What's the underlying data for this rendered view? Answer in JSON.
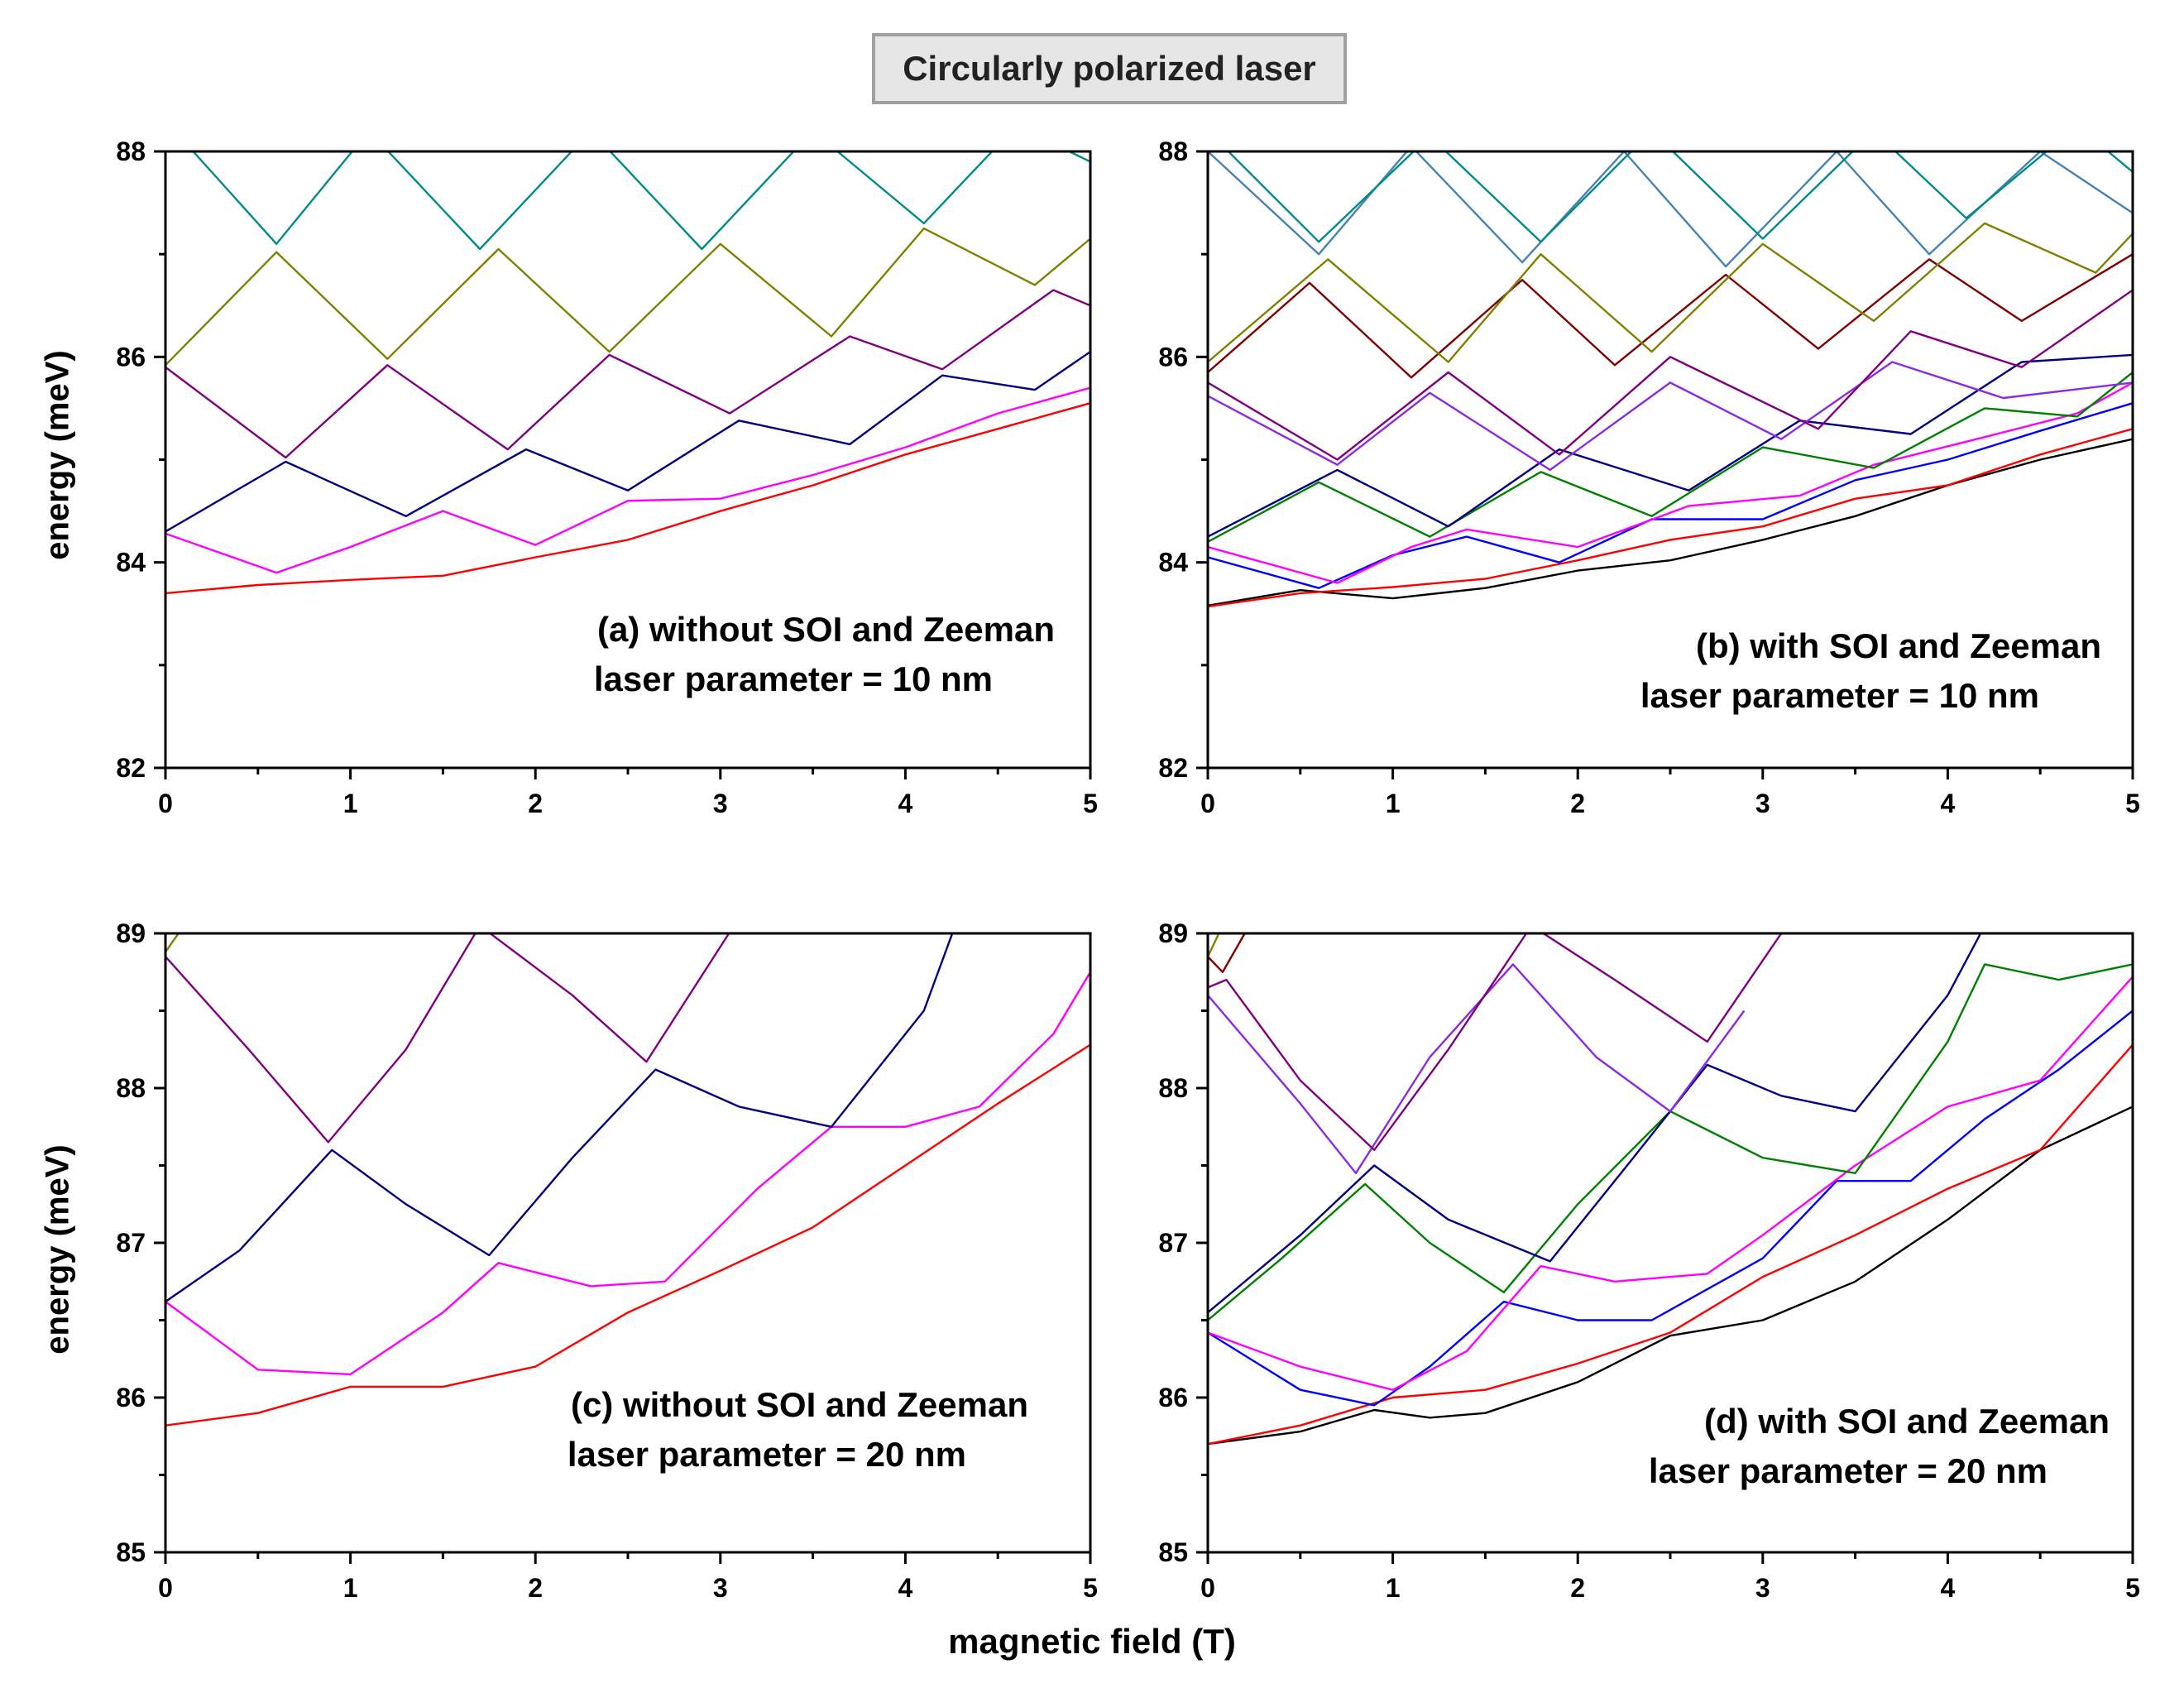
{
  "figure": {
    "title": "Circularly polarized laser",
    "xlabel": "magnetic field (T)",
    "ylabel": "energy (meV)"
  },
  "chart_data": [
    {
      "type": "line",
      "panel": "a",
      "annotation": [
        "(a) without SOI and Zeeman",
        "laser parameter = 10 nm"
      ],
      "xlim": [
        0,
        5
      ],
      "ylim": [
        82,
        88
      ],
      "xticks": [
        0,
        1,
        2,
        3,
        4,
        5
      ],
      "yticks": [
        82,
        84,
        86,
        88
      ],
      "series": [
        {
          "color": "#ff0000",
          "x": [
            0,
            0.5,
            1,
            1.5,
            2,
            2.5,
            3,
            3.5,
            4,
            4.5,
            5
          ],
          "y": [
            83.7,
            83.78,
            83.83,
            83.87,
            84.05,
            84.22,
            84.5,
            84.75,
            85.05,
            85.3,
            85.55
          ]
        },
        {
          "color": "#ff00ff",
          "x": [
            0,
            0.6,
            1,
            1.5,
            2,
            2.5,
            3,
            3.5,
            4,
            4.5,
            5
          ],
          "y": [
            84.28,
            83.9,
            84.15,
            84.5,
            84.17,
            84.6,
            84.62,
            84.85,
            85.12,
            85.45,
            85.7
          ]
        },
        {
          "color": "#000080",
          "x": [
            0,
            0.65,
            1.3,
            1.95,
            2.5,
            3.1,
            3.7,
            4.2,
            4.7,
            5
          ],
          "y": [
            84.3,
            84.98,
            84.45,
            85.1,
            84.7,
            85.38,
            85.15,
            85.82,
            85.68,
            86.05
          ]
        },
        {
          "color": "#800080",
          "x": [
            0,
            0.65,
            1.2,
            1.85,
            2.4,
            3.05,
            3.7,
            4.2,
            4.8,
            5
          ],
          "y": [
            85.9,
            85.02,
            85.92,
            85.1,
            86.02,
            85.45,
            86.2,
            85.88,
            86.65,
            86.5
          ]
        },
        {
          "color": "#808000",
          "x": [
            0,
            0.6,
            1.2,
            1.8,
            2.4,
            3,
            3.6,
            4.1,
            4.7,
            5
          ],
          "y": [
            85.92,
            87.02,
            85.98,
            87.05,
            86.05,
            87.1,
            86.2,
            87.25,
            86.7,
            87.15
          ]
        },
        {
          "color": "#008b8b",
          "x": [
            0,
            0.6,
            1.1,
            1.7,
            2.3,
            2.9,
            3.5,
            4.1,
            4.6,
            5
          ],
          "y": [
            88.3,
            87.1,
            88.2,
            87.05,
            88.2,
            87.05,
            88.2,
            87.3,
            88.25,
            87.9
          ]
        }
      ]
    },
    {
      "type": "line",
      "panel": "b",
      "annotation": [
        "(b) with SOI and Zeeman",
        "laser parameter = 10 nm"
      ],
      "xlim": [
        0,
        5
      ],
      "ylim": [
        82,
        88
      ],
      "xticks": [
        0,
        1,
        2,
        3,
        4,
        5
      ],
      "yticks": [
        82,
        84,
        86,
        88
      ],
      "series": [
        {
          "color": "#000000",
          "x": [
            0,
            0.5,
            1,
            1.5,
            2,
            2.5,
            3,
            3.5,
            4,
            4.5,
            5
          ],
          "y": [
            83.58,
            83.73,
            83.65,
            83.75,
            83.92,
            84.02,
            84.22,
            84.45,
            84.75,
            85,
            85.2
          ]
        },
        {
          "color": "#ff0000",
          "x": [
            0,
            0.5,
            1,
            1.5,
            2,
            2.5,
            3,
            3.5,
            4,
            4.5,
            5
          ],
          "y": [
            83.57,
            83.7,
            83.76,
            83.84,
            84.02,
            84.22,
            84.35,
            84.62,
            84.75,
            85.05,
            85.3
          ]
        },
        {
          "color": "#0000ff",
          "x": [
            0,
            0.6,
            1,
            1.4,
            1.9,
            2.4,
            3,
            3.5,
            4,
            4.5,
            5
          ],
          "y": [
            84.05,
            83.75,
            84.07,
            84.25,
            84.0,
            84.42,
            84.42,
            84.8,
            85.0,
            85.28,
            85.55
          ]
        },
        {
          "color": "#ff00ff",
          "x": [
            0,
            0.7,
            1.1,
            1.4,
            2,
            2.6,
            3.2,
            3.6,
            4.2,
            4.7,
            5
          ],
          "y": [
            84.15,
            83.8,
            84.15,
            84.32,
            84.15,
            84.55,
            84.65,
            84.95,
            85.22,
            85.45,
            85.75
          ]
        },
        {
          "color": "#008000",
          "x": [
            0,
            0.6,
            1.2,
            1.8,
            2.4,
            3,
            3.6,
            4.2,
            4.7,
            5
          ],
          "y": [
            84.2,
            84.78,
            84.25,
            84.88,
            84.45,
            85.12,
            84.92,
            85.5,
            85.42,
            85.85
          ]
        },
        {
          "color": "#000080",
          "x": [
            0,
            0.7,
            1.3,
            1.9,
            2.6,
            3.2,
            3.8,
            4.4,
            5
          ],
          "y": [
            84.25,
            84.9,
            84.35,
            85.1,
            84.7,
            85.38,
            85.25,
            85.95,
            86.02
          ]
        },
        {
          "color": "#8a2be2",
          "x": [
            0,
            0.7,
            1.2,
            1.85,
            2.5,
            3.1,
            3.7,
            4.3,
            5
          ],
          "y": [
            85.62,
            84.95,
            85.65,
            84.9,
            85.75,
            85.2,
            85.95,
            85.6,
            85.75
          ]
        },
        {
          "color": "#800080",
          "x": [
            0,
            0.7,
            1.3,
            1.9,
            2.5,
            3.3,
            3.8,
            4.4,
            5
          ],
          "y": [
            85.75,
            85.0,
            85.85,
            85.05,
            86.0,
            85.3,
            86.25,
            85.9,
            86.65
          ]
        },
        {
          "color": "#800000",
          "x": [
            0,
            0.55,
            1.1,
            1.7,
            2.2,
            2.8,
            3.3,
            3.9,
            4.4,
            5
          ],
          "y": [
            85.85,
            86.72,
            85.8,
            86.75,
            85.92,
            86.8,
            86.08,
            86.95,
            86.35,
            87.0
          ]
        },
        {
          "color": "#808000",
          "x": [
            0,
            0.65,
            1.3,
            1.8,
            2.4,
            3,
            3.6,
            4.2,
            4.8,
            5
          ],
          "y": [
            85.95,
            86.95,
            85.95,
            87.0,
            86.05,
            87.1,
            86.35,
            87.3,
            86.82,
            87.2
          ]
        },
        {
          "color": "#4682b4",
          "x": [
            0,
            0.6,
            1.1,
            1.7,
            2.25,
            2.8,
            3.4,
            3.9,
            4.5,
            5
          ],
          "y": [
            88.0,
            87.0,
            88.05,
            86.92,
            88.0,
            86.88,
            88.0,
            87.0,
            88.0,
            87.4
          ]
        },
        {
          "color": "#008b8b",
          "x": [
            0,
            0.6,
            1.2,
            1.8,
            2.4,
            3,
            3.6,
            4.1,
            4.7,
            5
          ],
          "y": [
            88.2,
            87.12,
            88.15,
            87.12,
            88.2,
            87.15,
            88.2,
            87.35,
            88.25,
            87.8
          ]
        }
      ]
    },
    {
      "type": "line",
      "panel": "c",
      "annotation": [
        "(c) without SOI and Zeeman",
        "laser parameter = 20 nm"
      ],
      "xlim": [
        0,
        5
      ],
      "ylim": [
        85,
        89
      ],
      "xticks": [
        0,
        1,
        2,
        3,
        4,
        5
      ],
      "yticks": [
        85,
        86,
        87,
        88,
        89
      ],
      "series": [
        {
          "color": "#ff0000",
          "x": [
            0,
            0.5,
            1,
            1.5,
            2,
            2.5,
            3,
            3.5,
            4,
            4.5,
            5
          ],
          "y": [
            85.82,
            85.9,
            86.07,
            86.07,
            86.2,
            86.55,
            86.82,
            87.1,
            87.5,
            87.9,
            88.28
          ]
        },
        {
          "color": "#ff00ff",
          "x": [
            0,
            0.5,
            1,
            1.5,
            1.8,
            2.3,
            2.7,
            3.2,
            3.6,
            4,
            4.4,
            4.8,
            5
          ],
          "y": [
            86.62,
            86.18,
            86.15,
            86.55,
            86.87,
            86.72,
            86.75,
            87.35,
            87.75,
            87.75,
            87.88,
            88.35,
            88.75
          ]
        },
        {
          "color": "#000080",
          "x": [
            0,
            0.4,
            0.9,
            1.3,
            1.75,
            2.2,
            2.65,
            3.1,
            3.6,
            4.1,
            4.3
          ],
          "y": [
            86.62,
            86.95,
            87.6,
            87.25,
            86.92,
            87.55,
            88.12,
            87.88,
            87.75,
            88.5,
            89.15
          ]
        },
        {
          "color": "#800080",
          "x": [
            0,
            0.45,
            0.88,
            1.3,
            1.7,
            2.2,
            2.6,
            3.1
          ],
          "y": [
            88.85,
            88.25,
            87.65,
            88.25,
            89.05,
            88.6,
            88.17,
            89.1
          ]
        },
        {
          "color": "#808000",
          "x": [
            0,
            0.1
          ],
          "y": [
            88.88,
            89.05
          ]
        }
      ]
    },
    {
      "type": "line",
      "panel": "d",
      "annotation": [
        "(d) with SOI and Zeeman",
        "laser parameter = 20 nm"
      ],
      "xlim": [
        0,
        5
      ],
      "ylim": [
        85,
        89
      ],
      "xticks": [
        0,
        1,
        2,
        3,
        4,
        5
      ],
      "yticks": [
        85,
        86,
        87,
        88,
        89
      ],
      "series": [
        {
          "color": "#000000",
          "x": [
            0,
            0.5,
            0.9,
            1.2,
            1.5,
            2,
            2.5,
            3,
            3.5,
            4,
            4.5,
            5
          ],
          "y": [
            85.7,
            85.78,
            85.92,
            85.87,
            85.9,
            86.1,
            86.4,
            86.5,
            86.75,
            87.15,
            87.6,
            87.88
          ]
        },
        {
          "color": "#ff0000",
          "x": [
            0,
            0.5,
            1,
            1.5,
            2,
            2.5,
            3,
            3.5,
            4,
            4.5,
            5
          ],
          "y": [
            85.7,
            85.82,
            86.0,
            86.05,
            86.22,
            86.42,
            86.78,
            87.05,
            87.35,
            87.6,
            88.28
          ]
        },
        {
          "color": "#0000ff",
          "x": [
            0,
            0.5,
            0.9,
            1.2,
            1.6,
            2,
            2.4,
            3,
            3.4,
            3.8,
            4.2,
            4.6,
            5
          ],
          "y": [
            86.42,
            86.05,
            85.95,
            86.2,
            86.62,
            86.5,
            86.5,
            86.9,
            87.4,
            87.4,
            87.8,
            88.12,
            88.5
          ]
        },
        {
          "color": "#ff00ff",
          "x": [
            0,
            0.5,
            1,
            1.4,
            1.8,
            2.2,
            2.7,
            3,
            3.5,
            4,
            4.5,
            5
          ],
          "y": [
            86.42,
            86.2,
            86.05,
            86.3,
            86.85,
            86.75,
            86.8,
            87.05,
            87.5,
            87.88,
            88.05,
            88.72
          ]
        },
        {
          "color": "#008000",
          "x": [
            0,
            0.4,
            0.85,
            1.2,
            1.6,
            2,
            2.5,
            3,
            3.5,
            4,
            4.2,
            4.6,
            5
          ],
          "y": [
            86.5,
            86.9,
            87.38,
            87.0,
            86.68,
            87.25,
            87.85,
            87.55,
            87.45,
            88.3,
            88.8,
            88.7,
            88.8
          ]
        },
        {
          "color": "#000080",
          "x": [
            0,
            0.5,
            0.9,
            1.3,
            1.85,
            2.3,
            2.7,
            3.1,
            3.5,
            4,
            4.2
          ],
          "y": [
            86.55,
            87.05,
            87.5,
            87.15,
            86.88,
            87.55,
            88.15,
            87.95,
            87.85,
            88.6,
            89.05
          ]
        },
        {
          "color": "#8a2be2",
          "x": [
            0,
            0.5,
            0.8,
            1.2,
            1.65,
            2.1,
            2.5,
            2.9
          ],
          "y": [
            88.6,
            87.9,
            87.45,
            88.2,
            88.8,
            88.2,
            87.85,
            88.5
          ]
        },
        {
          "color": "#800080",
          "x": [
            0,
            0.1,
            0.5,
            0.9,
            1.3,
            1.75,
            2.2,
            2.7,
            3.1
          ],
          "y": [
            88.65,
            88.7,
            88.05,
            87.6,
            88.25,
            89.05,
            88.7,
            88.3,
            89.0
          ]
        },
        {
          "color": "#800000",
          "x": [
            0,
            0.08,
            0.2
          ],
          "y": [
            88.85,
            88.75,
            89.0
          ]
        },
        {
          "color": "#808000",
          "x": [
            0,
            0.06
          ],
          "y": [
            88.85,
            89.0
          ]
        }
      ]
    }
  ]
}
